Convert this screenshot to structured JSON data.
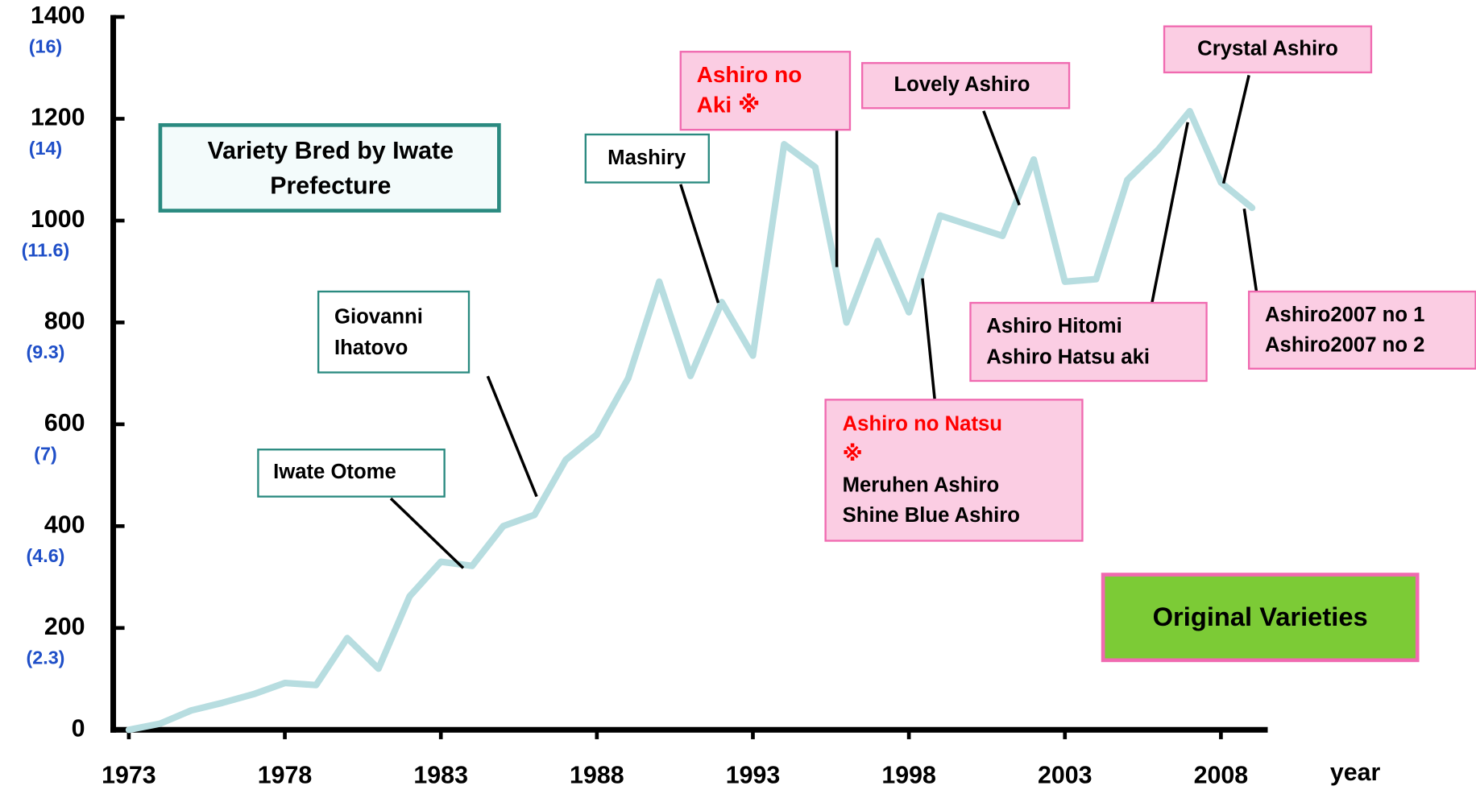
{
  "chart_data": {
    "type": "line",
    "x_label": "year",
    "x": [
      1973,
      1974,
      1975,
      1976,
      1977,
      1978,
      1979,
      1980,
      1981,
      1982,
      1983,
      1984,
      1985,
      1986,
      1987,
      1988,
      1989,
      1990,
      1991,
      1992,
      1993,
      1994,
      1995,
      1996,
      1997,
      1998,
      1999,
      2000,
      2001,
      2002,
      2003,
      2004,
      2005,
      2006,
      2007,
      2008,
      2009
    ],
    "series": [
      {
        "color": "#b7dde0",
        "values": [
          0,
          12,
          38,
          53,
          70,
          92,
          88,
          180,
          120,
          262,
          330,
          322,
          400,
          422,
          530,
          580,
          690,
          880,
          695,
          840,
          735,
          1150,
          1105,
          800,
          960,
          820,
          1010,
          990,
          970,
          1120,
          880,
          885,
          1080,
          1140,
          1215,
          1075,
          1025
        ]
      }
    ],
    "xlim": [
      1972.5,
      2009.5
    ],
    "xticks": [
      1973,
      1978,
      1983,
      1988,
      1993,
      1998,
      2003,
      2008
    ],
    "ylim": [
      0,
      1400
    ],
    "yticks": [
      0,
      200,
      400,
      600,
      800,
      1000,
      1200,
      1400
    ],
    "ytick_sublabels": [
      null,
      "(2.3)",
      "(4.6)",
      "(7)",
      "(9.3)",
      "(11.6)",
      "(14)",
      "(16)"
    ],
    "sublabel_color": "#1f4fc8",
    "annotations": [
      {
        "lines": [
          {
            "text": "Iwate Otome",
            "color": "#000000"
          }
        ],
        "box_fill": "#ffffff",
        "box_stroke": "#2a8a80"
      },
      {
        "lines": [
          {
            "text": "Giovanni",
            "color": "#000000"
          },
          {
            "text": "Ihatovo",
            "color": "#000000"
          }
        ],
        "box_fill": "#ffffff",
        "box_stroke": "#2a8a80"
      },
      {
        "lines": [
          {
            "text": "Mashiry",
            "color": "#000000"
          }
        ],
        "box_fill": "#ffffff",
        "box_stroke": "#2a8a80"
      },
      {
        "lines": [
          {
            "text": "Ashiro no",
            "color": "#ff0000"
          },
          {
            "text": "Aki ※",
            "color": "#ff0000"
          }
        ],
        "box_fill": "#fbcde3",
        "box_stroke": "#f06ab0"
      },
      {
        "lines": [
          {
            "text": "Lovely Ashiro",
            "color": "#000000"
          }
        ],
        "box_fill": "#fbcde3",
        "box_stroke": "#f06ab0"
      },
      {
        "lines": [
          {
            "text": "Ashiro no Natsu",
            "color": "#ff0000"
          },
          {
            "text": "※",
            "color": "#ff0000"
          },
          {
            "text": "Meruhen Ashiro",
            "color": "#000000"
          },
          {
            "text": "Shine Blue Ashiro",
            "color": "#000000"
          }
        ],
        "box_fill": "#fbcde3",
        "box_stroke": "#f06ab0"
      },
      {
        "lines": [
          {
            "text": "Ashiro Hitomi",
            "color": "#000000"
          },
          {
            "text": "Ashiro Hatsu aki",
            "color": "#000000"
          }
        ],
        "box_fill": "#fbcde3",
        "box_stroke": "#f06ab0"
      },
      {
        "lines": [
          {
            "text": "Crystal Ashiro",
            "color": "#000000"
          }
        ],
        "box_fill": "#fbcde3",
        "box_stroke": "#f06ab0"
      },
      {
        "lines": [
          {
            "text": "Ashiro2007 no 1",
            "color": "#000000"
          },
          {
            "text": "Ashiro2007 no 2",
            "color": "#000000"
          }
        ],
        "box_fill": "#fbcde3",
        "box_stroke": "#f06ab0"
      }
    ],
    "legend": [
      {
        "label": "Variety Bred by Iwate Prefecture",
        "fill": "#f3fbfb",
        "stroke": "#2a8a80"
      },
      {
        "label": "Original Varieties",
        "fill": "#7ccb36",
        "stroke": "#f06ab0"
      }
    ]
  }
}
